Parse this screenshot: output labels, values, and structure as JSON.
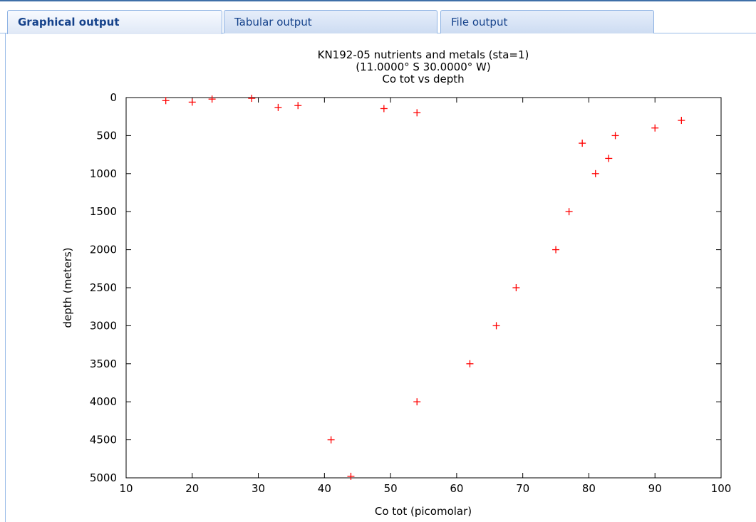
{
  "tabs": [
    {
      "label": "Graphical output",
      "active": true
    },
    {
      "label": "Tabular output",
      "active": false
    },
    {
      "label": "File output",
      "active": false
    }
  ],
  "chart_data": {
    "type": "scatter",
    "title_lines": [
      "KN192-05 nutrients and metals (sta=1)",
      "(11.0000° S 30.0000° W)",
      "Co tot vs depth"
    ],
    "xlabel": "Co tot (picomolar)",
    "ylabel": "depth (meters)",
    "xlim": [
      10,
      100
    ],
    "ylim": [
      0,
      5000
    ],
    "y_inverted": true,
    "x_ticks": [
      10,
      20,
      30,
      40,
      50,
      60,
      70,
      80,
      90,
      100
    ],
    "y_ticks": [
      0,
      500,
      1000,
      1500,
      2000,
      2500,
      3000,
      3500,
      4000,
      4500,
      5000
    ],
    "marker": "+",
    "marker_color": "#ff0000",
    "grid": false,
    "points": [
      {
        "x": 16,
        "y": 40
      },
      {
        "x": 20,
        "y": 60
      },
      {
        "x": 23,
        "y": 20
      },
      {
        "x": 29,
        "y": 10
      },
      {
        "x": 33,
        "y": 130
      },
      {
        "x": 36,
        "y": 105
      },
      {
        "x": 49,
        "y": 145
      },
      {
        "x": 54,
        "y": 200
      },
      {
        "x": 94,
        "y": 300
      },
      {
        "x": 90,
        "y": 400
      },
      {
        "x": 84,
        "y": 500
      },
      {
        "x": 79,
        "y": 600
      },
      {
        "x": 83,
        "y": 800
      },
      {
        "x": 81,
        "y": 1000
      },
      {
        "x": 77,
        "y": 1500
      },
      {
        "x": 75,
        "y": 2000
      },
      {
        "x": 69,
        "y": 2500
      },
      {
        "x": 66,
        "y": 3000
      },
      {
        "x": 62,
        "y": 3500
      },
      {
        "x": 54,
        "y": 4000
      },
      {
        "x": 41,
        "y": 4500
      },
      {
        "x": 44,
        "y": 4980
      }
    ]
  }
}
